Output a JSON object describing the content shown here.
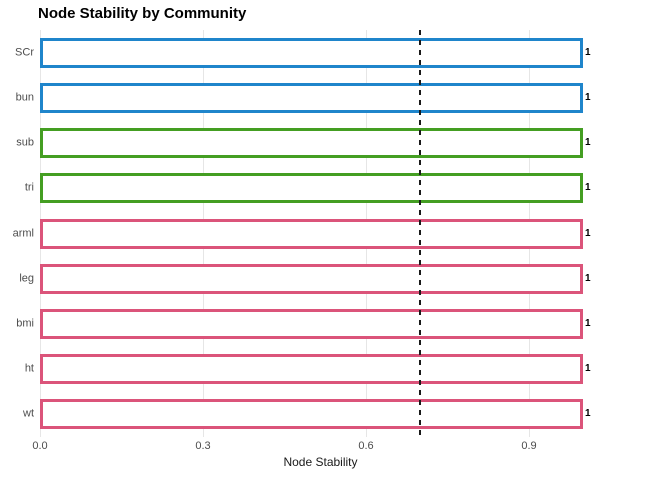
{
  "title": "Node Stability by Community",
  "colors": {
    "community_blue": "#1F85CB",
    "community_green": "#449E22",
    "community_pink": "#DB547A",
    "bar_fill": "#FFFFFF",
    "gridline": "#E6E6E6",
    "reference_line": "#1A1A1A",
    "tick_label": "#4D4D4D",
    "title_text": "#000000"
  },
  "chart_data": {
    "type": "bar",
    "orientation": "horizontal",
    "title": "Node Stability by Community",
    "xlabel": "Node Stability",
    "ylabel": "",
    "categories": [
      "SCr",
      "bun",
      "sub",
      "tri",
      "arml",
      "leg",
      "bmi",
      "ht",
      "wt"
    ],
    "values": [
      1,
      1,
      1,
      1,
      1,
      1,
      1,
      1,
      1
    ],
    "value_labels": [
      "1",
      "1",
      "1",
      "1",
      "1",
      "1",
      "1",
      "1",
      "1"
    ],
    "bar_colors": [
      "#1F85CB",
      "#1F85CB",
      "#449E22",
      "#449E22",
      "#DB547A",
      "#DB547A",
      "#DB547A",
      "#DB547A",
      "#DB547A"
    ],
    "communities": [
      {
        "color": "#1F85CB",
        "members": [
          "SCr",
          "bun"
        ]
      },
      {
        "color": "#449E22",
        "members": [
          "sub",
          "tri"
        ]
      },
      {
        "color": "#DB547A",
        "members": [
          "arml",
          "leg",
          "bmi",
          "ht",
          "wt"
        ]
      }
    ],
    "x_ticks": [
      0.0,
      0.3,
      0.6,
      0.9
    ],
    "x_tick_labels": [
      "0.0",
      "0.3",
      "0.6",
      "0.9"
    ],
    "xlim": [
      0,
      1.05
    ],
    "reference_line": {
      "x": 0.7,
      "style": "dashed",
      "color": "#1A1A1A"
    },
    "grid": "vertical-major-only",
    "legend": "none",
    "bar_style": "outlined-white-fill"
  }
}
